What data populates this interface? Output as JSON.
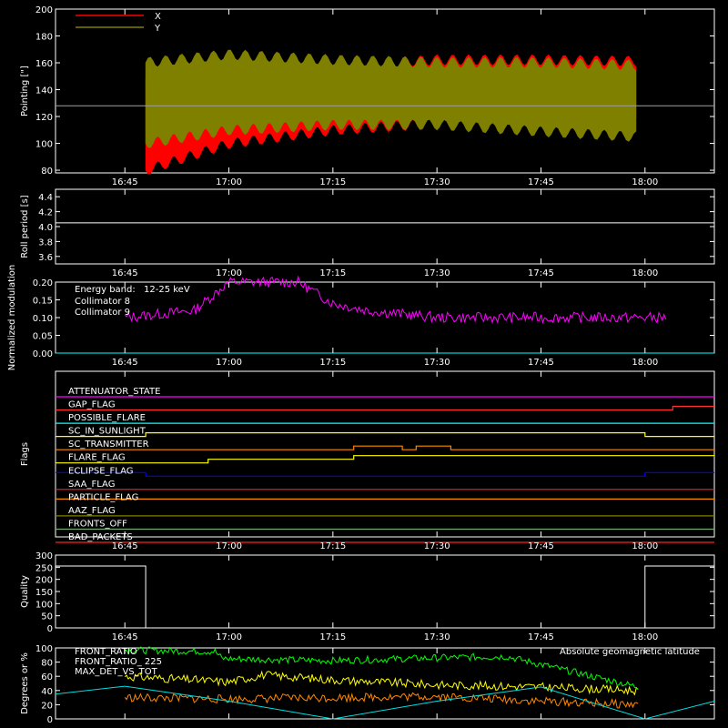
{
  "chart_data": [
    {
      "type": "area",
      "ylabel": "Pointing [\"]",
      "ylim": [
        78,
        200
      ],
      "y_ticks": [
        80,
        100,
        120,
        140,
        160,
        180,
        200
      ],
      "x_ticks": [
        "16:45",
        "17:00",
        "17:15",
        "17:30",
        "17:45",
        "18:00"
      ],
      "legend": {
        "placement": "top-left"
      },
      "series": [
        {
          "name": "X",
          "color": "#ff0000",
          "x": [
            "16:48",
            "17:00",
            "17:15",
            "17:30",
            "17:45",
            "17:59"
          ],
          "upper": [
            148,
            150,
            158,
            162,
            162,
            161
          ],
          "lower": [
            80,
            100,
            110,
            115,
            117,
            115
          ]
        },
        {
          "name": "Y",
          "color": "#808000",
          "x": [
            "16:48",
            "17:00",
            "17:15",
            "17:30",
            "17:45",
            "17:59"
          ],
          "upper": [
            160,
            166,
            162,
            160,
            160,
            158
          ],
          "lower": [
            100,
            110,
            114,
            114,
            109,
            105
          ]
        },
        {
          "name": "",
          "color": "#a0a0a0",
          "x": [
            "16:35",
            "18:10"
          ],
          "values": [
            128,
            128
          ]
        }
      ]
    },
    {
      "type": "line",
      "ylabel": "Roll period [s]",
      "ylim": [
        3.5,
        4.5
      ],
      "y_ticks": [
        3.6,
        3.8,
        4.0,
        4.2,
        4.4
      ],
      "x_ticks": [
        "16:45",
        "17:00",
        "17:15",
        "17:30",
        "17:45",
        "18:00"
      ],
      "series": [
        {
          "name": "",
          "color": "#ffffff",
          "x": [
            "16:35",
            "18:10"
          ],
          "values": [
            4.05,
            4.05
          ]
        }
      ]
    },
    {
      "type": "line",
      "ylabel": "Normalized modulation",
      "ylim": [
        0,
        0.2
      ],
      "y_ticks": [
        0.0,
        0.05,
        0.1,
        0.15,
        0.2
      ],
      "x_ticks": [
        "16:45",
        "17:00",
        "17:15",
        "17:30",
        "17:45",
        "18:00"
      ],
      "annotation": {
        "label": "Energy band:",
        "value": "12-25 keV"
      },
      "series": [
        {
          "name": "Collimator 8",
          "color": "#00ffff",
          "x": [
            "16:35",
            "18:10"
          ],
          "values": [
            0.0,
            0.0
          ]
        },
        {
          "name": "Collimator 9",
          "color": "#ff00ff",
          "x": [
            "16:45",
            "16:50",
            "16:55",
            "17:00",
            "17:05",
            "17:10",
            "17:15",
            "17:20",
            "17:30",
            "17:45",
            "18:00",
            "18:03"
          ],
          "values": [
            0.1,
            0.11,
            0.12,
            0.2,
            0.2,
            0.2,
            0.14,
            0.12,
            0.1,
            0.1,
            0.1,
            0.1
          ]
        }
      ]
    },
    {
      "type": "line",
      "ylabel": "Flags",
      "x_ticks": [
        "16:45",
        "17:00",
        "17:15",
        "17:30",
        "17:45",
        "18:00"
      ],
      "series": [
        {
          "name": "ATTENUATOR_STATE",
          "color": "#ff00ff",
          "x": [
            "16:35",
            "18:10"
          ],
          "values": [
            0,
            0
          ]
        },
        {
          "name": "GAP_FLAG",
          "color": "#ff3030",
          "x": [
            "16:35",
            "18:04",
            "18:04",
            "18:10"
          ],
          "values": [
            0,
            0,
            1,
            1
          ]
        },
        {
          "name": "POSSIBLE_FLARE",
          "color": "#00ffff",
          "x": [
            "16:35",
            "18:10"
          ],
          "values": [
            0,
            0
          ]
        },
        {
          "name": "SC_IN_SUNLIGHT",
          "color": "#ffff00",
          "x": [
            "16:35",
            "16:48",
            "16:48",
            "18:00",
            "18:00",
            "18:10"
          ],
          "values": [
            0,
            0,
            1,
            1,
            0,
            0
          ]
        },
        {
          "name": "SC_TRANSMITTER",
          "color": "#ff8800",
          "x": [
            "16:35",
            "17:18",
            "17:18",
            "17:25",
            "17:25",
            "17:27",
            "17:27",
            "17:32",
            "17:32",
            "18:10"
          ],
          "values": [
            0,
            0,
            1,
            1,
            0,
            0,
            1,
            1,
            0,
            0
          ]
        },
        {
          "name": "FLARE_FLAG",
          "color": "#ffff00",
          "x": [
            "16:35",
            "16:57",
            "16:57",
            "17:18",
            "17:18",
            "18:10"
          ],
          "values": [
            0,
            0,
            1,
            1,
            2,
            2
          ]
        },
        {
          "name": "ECLIPSE_FLAG",
          "color": "#0000ff",
          "x": [
            "16:35",
            "16:48",
            "16:48",
            "18:00",
            "18:00",
            "18:10"
          ],
          "values": [
            1,
            1,
            0,
            0,
            1,
            1
          ]
        },
        {
          "name": "SAA_FLAG",
          "color": "#ff2020",
          "x": [
            "16:35",
            "18:10"
          ],
          "values": [
            0,
            0
          ]
        },
        {
          "name": "PARTICLE_FLAG",
          "color": "#ff8800",
          "x": [
            "16:35",
            "18:10"
          ],
          "values": [
            1,
            1
          ]
        },
        {
          "name": "AAZ_FLAG",
          "color": "#808000",
          "x": [
            "16:35",
            "18:10"
          ],
          "values": [
            0,
            0
          ]
        },
        {
          "name": "FRONTS_OFF",
          "color": "#00ff00",
          "x": [
            "16:35",
            "18:10"
          ],
          "values": [
            0,
            0
          ]
        },
        {
          "name": "BAD_PACKETS",
          "color": "#ff2020",
          "x": [
            "16:35",
            "18:10"
          ],
          "values": [
            0,
            0
          ]
        }
      ]
    },
    {
      "type": "line",
      "ylabel": "Quality",
      "ylim": [
        0,
        300
      ],
      "y_ticks": [
        0,
        50,
        100,
        150,
        200,
        250,
        300
      ],
      "x_ticks": [
        "16:45",
        "17:00",
        "17:15",
        "17:30",
        "17:45",
        "18:00"
      ],
      "series": [
        {
          "name": "",
          "color": "#ffffff",
          "x": [
            "16:35",
            "16:48",
            "16:48",
            "18:00",
            "18:00",
            "18:10"
          ],
          "values": [
            255,
            255,
            0,
            0,
            255,
            255
          ]
        }
      ]
    },
    {
      "type": "line",
      "ylabel": "Degrees or %",
      "ylim": [
        0,
        100
      ],
      "y_ticks": [
        0,
        20,
        40,
        60,
        80,
        100
      ],
      "annotation": {
        "label": "Absolute geomagnetic latitude"
      },
      "series": [
        {
          "name": "FRONT_RATIO",
          "color": "#ffff00",
          "x": [
            "16:45",
            "16:55",
            "17:00",
            "17:05",
            "17:15",
            "17:30",
            "17:45",
            "17:59"
          ],
          "values": [
            60,
            55,
            52,
            62,
            55,
            48,
            45,
            40
          ]
        },
        {
          "name": "FRONT_RATIO_ 225",
          "color": "#00ff00",
          "x": [
            "16:45",
            "16:58",
            "16:59",
            "17:15",
            "17:30",
            "17:40",
            "17:59"
          ],
          "values": [
            97,
            95,
            85,
            82,
            86,
            88,
            45
          ]
        },
        {
          "name": "MAX_DET_VS_TOT",
          "color": "#ff8800",
          "x": [
            "16:45",
            "17:00",
            "17:15",
            "17:30",
            "17:45",
            "17:59"
          ],
          "values": [
            30,
            28,
            30,
            32,
            25,
            20
          ]
        },
        {
          "name": "Absolute geomagnetic latitude",
          "color": "#00e0e0",
          "x": [
            "16:35",
            "16:45",
            "17:00",
            "17:15",
            "17:30",
            "17:45",
            "18:00",
            "18:10"
          ],
          "values": [
            35,
            46,
            25,
            0,
            25,
            45,
            0,
            25
          ]
        }
      ]
    }
  ]
}
